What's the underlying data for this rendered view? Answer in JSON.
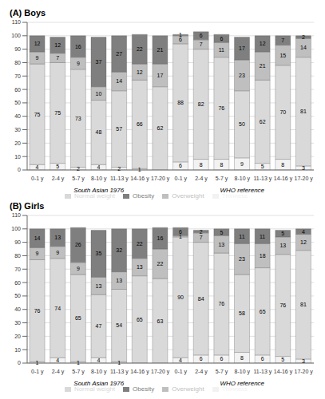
{
  "chart_data": [
    {
      "type": "bar",
      "title": "(A) Boys",
      "stacked": true,
      "data_labels": true,
      "grid": true,
      "legend": "bottom",
      "categories": [
        "0-1 y",
        "2-4 y",
        "5-7 y",
        "8-10 y",
        "11-13 y",
        "14-16 y",
        "17-20 y",
        "0-1 y",
        "2-4 y",
        "5-7 y",
        "8-10 y",
        "11-13 y",
        "14-16 y",
        "17-20 y"
      ],
      "x_groups": [
        "South Asian 1976",
        "WHO reference"
      ],
      "series": [
        {
          "name": "Thinness",
          "color": "#f2f2f2",
          "values": [
            4,
            5,
            2,
            4,
            2,
            1,
            0,
            6,
            8,
            8,
            9,
            5,
            8,
            3
          ]
        },
        {
          "name": "Normal weight",
          "color": "#d9d9d9",
          "values": [
            75,
            75,
            73,
            48,
            57,
            66,
            62,
            88,
            82,
            76,
            50,
            62,
            70,
            81
          ]
        },
        {
          "name": "Overweight",
          "color": "#bfbfbf",
          "values": [
            9,
            7,
            9,
            10,
            14,
            12,
            17,
            6,
            7,
            11,
            23,
            21,
            15,
            14
          ]
        },
        {
          "name": "Obesity",
          "color": "#7f7f7f",
          "values": [
            12,
            12,
            16,
            37,
            27,
            22,
            21,
            1,
            6,
            6,
            17,
            12,
            7,
            2
          ]
        }
      ],
      "ylim": [
        0,
        110
      ],
      "yticks": [
        0,
        10,
        20,
        30,
        40,
        50,
        60,
        70,
        80,
        90,
        100,
        110
      ]
    },
    {
      "type": "bar",
      "title": "(B) Girls",
      "stacked": true,
      "data_labels": true,
      "grid": true,
      "legend": "bottom",
      "categories": [
        "0-1 y",
        "2-4 y",
        "5-7 y",
        "8-10 y",
        "11-13 y",
        "14-16 y",
        "17-20 y",
        "0-1 y",
        "2-4 y",
        "5-7 y",
        "8-10 y",
        "11-13 y",
        "14-16 y",
        "17-20 y"
      ],
      "x_groups": [
        "South Asian 1976",
        "WHO reference"
      ],
      "series": [
        {
          "name": "Thinness",
          "color": "#f2f2f2",
          "values": [
            1,
            4,
            1,
            4,
            1,
            0,
            0,
            4,
            6,
            6,
            8,
            6,
            5,
            3
          ]
        },
        {
          "name": "Normal weight",
          "color": "#d9d9d9",
          "values": [
            76,
            74,
            65,
            47,
            54,
            65,
            63,
            90,
            84,
            76,
            58,
            65,
            76,
            81
          ]
        },
        {
          "name": "Overweight",
          "color": "#bfbfbf",
          "values": [
            9,
            9,
            9,
            13,
            13,
            13,
            22,
            1,
            7,
            13,
            23,
            18,
            13,
            12
          ]
        },
        {
          "name": "Obesity",
          "color": "#7f7f7f",
          "values": [
            14,
            13,
            26,
            35,
            32,
            22,
            16,
            6,
            2,
            5,
            11,
            11,
            5,
            4
          ]
        }
      ],
      "ylim": [
        0,
        110
      ],
      "yticks": [
        0,
        10,
        20,
        30,
        40,
        50,
        60,
        70,
        80,
        90,
        100,
        110
      ]
    }
  ]
}
